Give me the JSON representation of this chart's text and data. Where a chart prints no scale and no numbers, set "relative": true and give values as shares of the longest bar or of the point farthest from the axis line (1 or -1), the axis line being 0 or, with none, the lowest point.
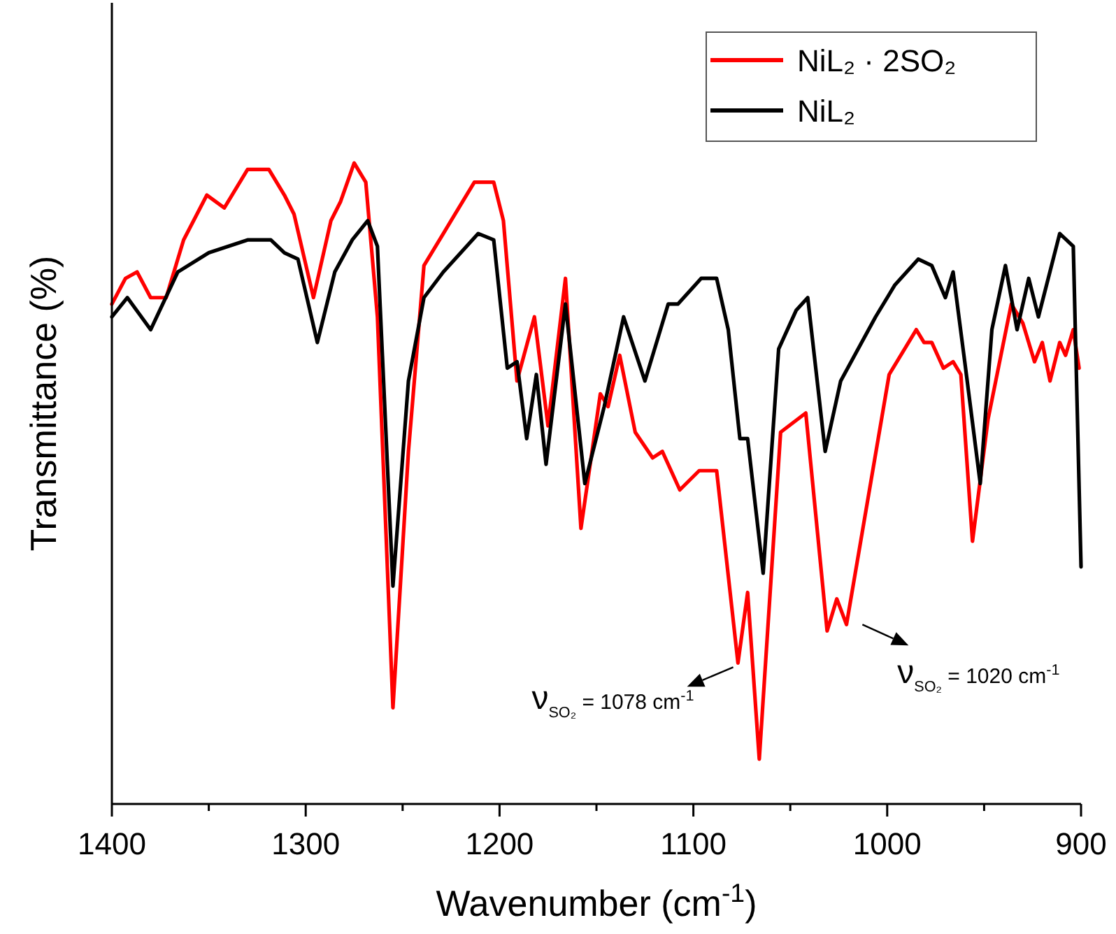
{
  "chart_data": {
    "type": "line",
    "relative": true,
    "xlabel": "Wavenumber (cm$^{-1}$)",
    "ylabel": "Transmittance (%)",
    "xlim": [
      1400,
      900
    ],
    "xticks": [
      1400,
      {
        "value": 1350,
        "label": null
      },
      1300,
      {
        "value": 1250,
        "label": null
      },
      1200,
      {
        "value": 1150,
        "label": null
      },
      1100,
      {
        "value": 1050,
        "label": null
      },
      1000,
      {
        "value": 950,
        "label": null
      },
      900
    ],
    "legend": "top right",
    "grid": false,
    "tick_labels": "x",
    "series": [
      {
        "name": "NiL₂ · 2SO₂",
        "color": "#ff0000",
        "x": [
          1400,
          1393,
          1387,
          1380,
          1372,
          1363,
          1351,
          1342,
          1330,
          1319,
          1311,
          1306,
          1296,
          1287,
          1282,
          1275,
          1269,
          1263,
          1255,
          1247,
          1239,
          1229,
          1225,
          1213,
          1203,
          1198,
          1191,
          1182,
          1175,
          1166,
          1158,
          1148,
          1144,
          1138,
          1130,
          1121,
          1116,
          1107,
          1097,
          1088,
          1077,
          1072,
          1066,
          1055,
          1042,
          1031,
          1026,
          1021,
          999,
          985,
          981,
          977,
          971,
          966,
          962,
          956,
          948,
          936,
          930,
          924,
          920,
          916,
          911,
          908,
          904,
          901
        ],
        "values": [
          0.78,
          0.82,
          0.83,
          0.79,
          0.79,
          0.88,
          0.95,
          0.93,
          0.99,
          0.99,
          0.95,
          0.92,
          0.79,
          0.91,
          0.94,
          1,
          0.97,
          0.76,
          0.15,
          0.55,
          0.84,
          0.89,
          0.91,
          0.97,
          0.97,
          0.91,
          0.66,
          0.76,
          0.59,
          0.82,
          0.43,
          0.64,
          0.62,
          0.7,
          0.58,
          0.54,
          0.55,
          0.49,
          0.52,
          0.52,
          0.22,
          0.33,
          0.07,
          0.58,
          0.61,
          0.27,
          0.32,
          0.28,
          0.67,
          0.74,
          0.72,
          0.72,
          0.68,
          0.69,
          0.67,
          0.41,
          0.6,
          0.78,
          0.75,
          0.69,
          0.72,
          0.66,
          0.72,
          0.7,
          0.74,
          0.68
        ]
      },
      {
        "name": "NiL₂",
        "color": "#000000",
        "x": [
          1400,
          1392,
          1380,
          1366,
          1350,
          1330,
          1318,
          1311,
          1304,
          1294,
          1285,
          1276,
          1268,
          1263,
          1255,
          1247,
          1239,
          1229,
          1211,
          1203,
          1196,
          1191,
          1186,
          1181,
          1176,
          1166,
          1156,
          1146,
          1136,
          1125,
          1113,
          1108,
          1096,
          1088,
          1082,
          1076,
          1072,
          1064,
          1056,
          1047,
          1041,
          1032,
          1024,
          1006,
          996,
          984,
          977,
          970,
          966,
          960,
          952,
          946,
          939,
          933,
          927,
          922,
          911,
          904,
          900
        ],
        "values": [
          0.76,
          0.79,
          0.74,
          0.83,
          0.86,
          0.88,
          0.88,
          0.86,
          0.85,
          0.72,
          0.83,
          0.88,
          0.91,
          0.87,
          0.34,
          0.66,
          0.79,
          0.83,
          0.89,
          0.88,
          0.68,
          0.69,
          0.57,
          0.67,
          0.53,
          0.78,
          0.5,
          0.62,
          0.76,
          0.66,
          0.78,
          0.78,
          0.82,
          0.82,
          0.74,
          0.57,
          0.57,
          0.36,
          0.71,
          0.77,
          0.79,
          0.55,
          0.66,
          0.76,
          0.81,
          0.85,
          0.84,
          0.79,
          0.83,
          0.69,
          0.5,
          0.74,
          0.84,
          0.74,
          0.82,
          0.76,
          0.89,
          0.87,
          0.37
        ]
      }
    ],
    "annotations": [
      {
        "text": "ν$_{SO₂}$ = 1078 cm$^{-1}$",
        "x": 1078,
        "y": 0.22
      },
      {
        "text": "ν$_{SO₂}$ = 1020 cm$^{-1}$",
        "x": 1020,
        "y": 0.28
      }
    ]
  }
}
